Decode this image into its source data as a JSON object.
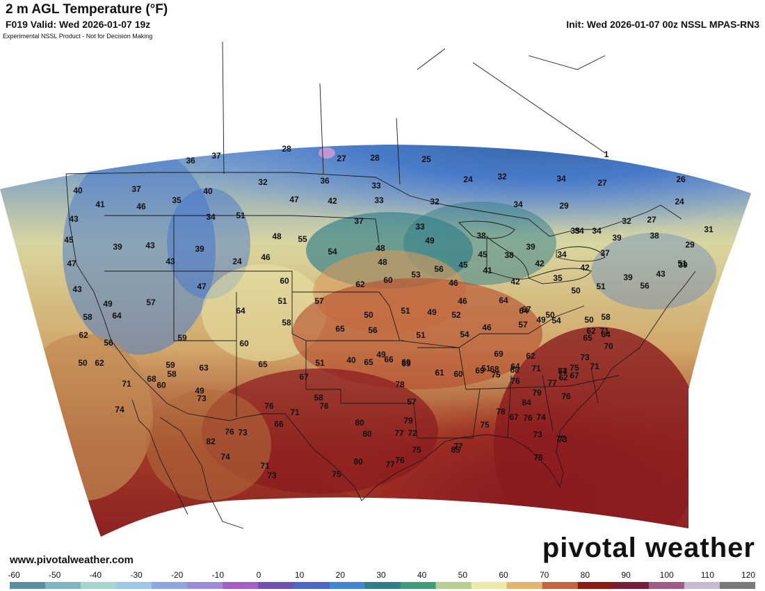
{
  "header": {
    "title": "2 m AGL Temperature (°F)",
    "valid": "F019 Valid: Wed 2026-01-07 19z",
    "init": "Init: Wed 2026-01-07 00z NSSL MPAS-RN3",
    "disclaimer": "Experimental NSSL Product - Not for Decision Making"
  },
  "footer": {
    "website": "www.pivotalweather.com",
    "brand": "pivotal weather"
  },
  "scale": {
    "ticks": [
      "-60",
      "-50",
      "-40",
      "-30",
      "-20",
      "-10",
      "0",
      "10",
      "20",
      "30",
      "40",
      "50",
      "60",
      "70",
      "80",
      "90",
      "100",
      "110",
      "120"
    ],
    "colors": [
      "#5b8fa3",
      "#7fb6c2",
      "#a8d6cf",
      "#9ec7e6",
      "#8fa7e0",
      "#9d8cd9",
      "#a35fc7",
      "#6e4fb2",
      "#4c66c9",
      "#3f86d3",
      "#2f7e8a",
      "#3f9a7a",
      "#b8cf93",
      "#efe9a8",
      "#e6b56d",
      "#c6643f",
      "#8a1a12",
      "#7a1e3d",
      "#a05a86",
      "#c8b9d2",
      "#7a7a7a"
    ]
  },
  "map_labels": [
    {
      "text": "28"
    },
    {
      "text": "36"
    },
    {
      "text": "37"
    },
    {
      "text": "27"
    },
    {
      "text": "28"
    },
    {
      "text": "25"
    },
    {
      "text": "1"
    },
    {
      "text": "40"
    },
    {
      "text": "37"
    },
    {
      "text": "35"
    },
    {
      "text": "40"
    },
    {
      "text": "32"
    },
    {
      "text": "36"
    },
    {
      "text": "33"
    },
    {
      "text": "24"
    },
    {
      "text": "32"
    },
    {
      "text": "34"
    },
    {
      "text": "27"
    },
    {
      "text": "26"
    },
    {
      "text": "41"
    },
    {
      "text": "46"
    },
    {
      "text": "47"
    },
    {
      "text": "42"
    },
    {
      "text": "33"
    },
    {
      "text": "32"
    },
    {
      "text": "34"
    },
    {
      "text": "29"
    },
    {
      "text": "24"
    },
    {
      "text": "43"
    },
    {
      "text": "34"
    },
    {
      "text": "51"
    },
    {
      "text": "37"
    },
    {
      "text": "33"
    },
    {
      "text": "32"
    },
    {
      "text": "27"
    },
    {
      "text": "31"
    },
    {
      "text": "45"
    },
    {
      "text": "39"
    },
    {
      "text": "43"
    },
    {
      "text": "39"
    },
    {
      "text": "48"
    },
    {
      "text": "55"
    },
    {
      "text": "49"
    },
    {
      "text": "38"
    },
    {
      "text": "35"
    },
    {
      "text": "34"
    },
    {
      "text": "39"
    },
    {
      "text": "29"
    },
    {
      "text": "47"
    },
    {
      "text": "43"
    },
    {
      "text": "24"
    },
    {
      "text": "46"
    },
    {
      "text": "54"
    },
    {
      "text": "48"
    },
    {
      "text": "45"
    },
    {
      "text": "38"
    },
    {
      "text": "39"
    },
    {
      "text": "34"
    },
    {
      "text": "37"
    },
    {
      "text": "34"
    },
    {
      "text": "38"
    },
    {
      "text": "51"
    },
    {
      "text": "43"
    },
    {
      "text": "47"
    },
    {
      "text": "60"
    },
    {
      "text": "62"
    },
    {
      "text": "60"
    },
    {
      "text": "53"
    },
    {
      "text": "56"
    },
    {
      "text": "48"
    },
    {
      "text": "45"
    },
    {
      "text": "41"
    },
    {
      "text": "42"
    },
    {
      "text": "35"
    },
    {
      "text": "42"
    },
    {
      "text": "39"
    },
    {
      "text": "43"
    },
    {
      "text": "39"
    },
    {
      "text": "49"
    },
    {
      "text": "57"
    },
    {
      "text": "51"
    },
    {
      "text": "57"
    },
    {
      "text": "46"
    },
    {
      "text": "46"
    },
    {
      "text": "42"
    },
    {
      "text": "50"
    },
    {
      "text": "51"
    },
    {
      "text": "56"
    },
    {
      "text": "64"
    },
    {
      "text": "64"
    },
    {
      "text": "64"
    },
    {
      "text": "58"
    },
    {
      "text": "50"
    },
    {
      "text": "51"
    },
    {
      "text": "49"
    },
    {
      "text": "52"
    },
    {
      "text": "46"
    },
    {
      "text": "57"
    },
    {
      "text": "49"
    },
    {
      "text": "54"
    },
    {
      "text": "50"
    },
    {
      "text": "58"
    },
    {
      "text": "64"
    },
    {
      "text": "65"
    },
    {
      "text": "56"
    },
    {
      "text": "51"
    },
    {
      "text": "54"
    },
    {
      "text": "67"
    },
    {
      "text": "50"
    },
    {
      "text": "62"
    },
    {
      "text": "64"
    },
    {
      "text": "62"
    },
    {
      "text": "56"
    },
    {
      "text": "50"
    },
    {
      "text": "59"
    },
    {
      "text": "60"
    },
    {
      "text": "65"
    },
    {
      "text": "51"
    },
    {
      "text": "40"
    },
    {
      "text": "49"
    },
    {
      "text": "66"
    },
    {
      "text": "69"
    },
    {
      "text": "69"
    },
    {
      "text": "68"
    },
    {
      "text": "62"
    },
    {
      "text": "65"
    },
    {
      "text": "70"
    },
    {
      "text": "58"
    },
    {
      "text": "62"
    },
    {
      "text": "58"
    },
    {
      "text": "63"
    },
    {
      "text": "67"
    },
    {
      "text": "65"
    },
    {
      "text": "69"
    },
    {
      "text": "61"
    },
    {
      "text": "60"
    },
    {
      "text": "69"
    },
    {
      "text": "75"
    },
    {
      "text": "71"
    },
    {
      "text": "71"
    },
    {
      "text": "67"
    },
    {
      "text": "71"
    },
    {
      "text": "68"
    },
    {
      "text": "59"
    },
    {
      "text": "60"
    },
    {
      "text": "49"
    },
    {
      "text": "58"
    },
    {
      "text": "78"
    },
    {
      "text": "75"
    },
    {
      "text": "74"
    },
    {
      "text": "71"
    },
    {
      "text": "68"
    },
    {
      "text": "67"
    },
    {
      "text": "73"
    },
    {
      "text": "74"
    },
    {
      "text": "73"
    },
    {
      "text": "76"
    },
    {
      "text": "76"
    },
    {
      "text": "57"
    },
    {
      "text": "51"
    },
    {
      "text": "64"
    },
    {
      "text": "79"
    },
    {
      "text": "78"
    },
    {
      "text": "76"
    },
    {
      "text": "77"
    },
    {
      "text": "73"
    },
    {
      "text": "66"
    },
    {
      "text": "71"
    },
    {
      "text": "80"
    },
    {
      "text": "79"
    },
    {
      "text": "75"
    },
    {
      "text": "67"
    },
    {
      "text": "76"
    },
    {
      "text": "74"
    },
    {
      "text": "62"
    },
    {
      "text": "82"
    },
    {
      "text": "76"
    },
    {
      "text": "71"
    },
    {
      "text": "80"
    },
    {
      "text": "77"
    },
    {
      "text": "72"
    },
    {
      "text": "84"
    },
    {
      "text": "73"
    },
    {
      "text": "73"
    },
    {
      "text": "74"
    },
    {
      "text": "73"
    },
    {
      "text": "75"
    },
    {
      "text": "80"
    },
    {
      "text": "77"
    },
    {
      "text": "76"
    },
    {
      "text": "75"
    },
    {
      "text": "77"
    },
    {
      "text": "85"
    },
    {
      "text": "76"
    },
    {
      "text": "77"
    },
    {
      "text": "78"
    }
  ]
}
